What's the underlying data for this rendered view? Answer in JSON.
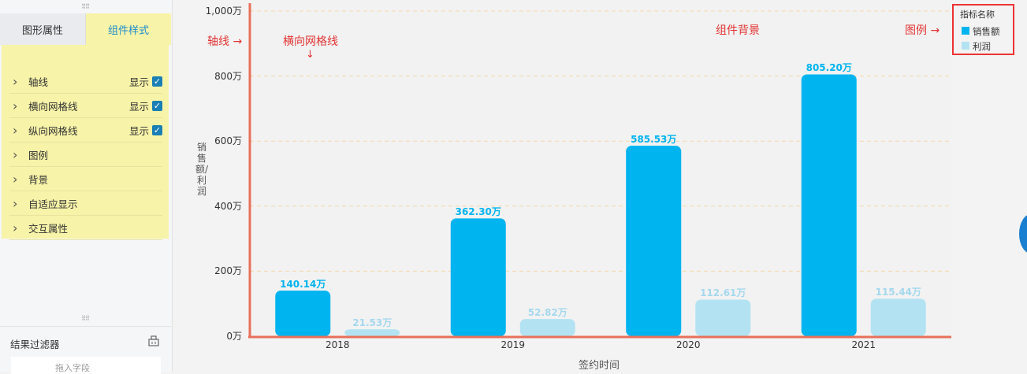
{
  "left_panel": {
    "tabs": [
      "图形属性",
      "组件样式"
    ],
    "settings": [
      {
        "label": "轴线",
        "show_label": "显示",
        "checked": true
      },
      {
        "label": "横向网格线",
        "show_label": "显示",
        "checked": true
      },
      {
        "label": "纵向网格线",
        "show_label": "显示",
        "checked": true
      },
      {
        "label": "图例"
      },
      {
        "label": "背景"
      },
      {
        "label": "自适应显示"
      },
      {
        "label": "交互属性"
      }
    ],
    "filter_title": "结果过滤器",
    "filter_hint": "拖入字段"
  },
  "annotations": {
    "axis": "轴线",
    "hgrid": "横向网格线",
    "background": "组件背景",
    "legend": "图例"
  },
  "colors": {
    "sales": "#00b4f0",
    "profit": "#b3e3f3",
    "axis": "#e8705a",
    "grid": "#f5d8a8",
    "annotation": "#e33333"
  },
  "chart_data": {
    "type": "bar",
    "categories": [
      "2018",
      "2019",
      "2020",
      "2021"
    ],
    "series": [
      {
        "name": "销售额",
        "values": [
          140.14,
          362.3,
          585.53,
          805.2
        ],
        "labels": [
          "140.14万",
          "362.30万",
          "585.53万",
          "805.20万"
        ]
      },
      {
        "name": "利润",
        "values": [
          21.53,
          52.82,
          112.61,
          115.44
        ],
        "labels": [
          "21.53万",
          "52.82万",
          "112.61万",
          "115.44万"
        ]
      }
    ],
    "yticks": [
      "0万",
      "200万",
      "400万",
      "600万",
      "800万",
      "1,000万"
    ],
    "ylim": [
      0,
      1000
    ],
    "xlabel": "签约时间",
    "ylabel": "销售额/利润",
    "legend_title": "指标名称",
    "legend_position": "top-right",
    "grid": true
  }
}
